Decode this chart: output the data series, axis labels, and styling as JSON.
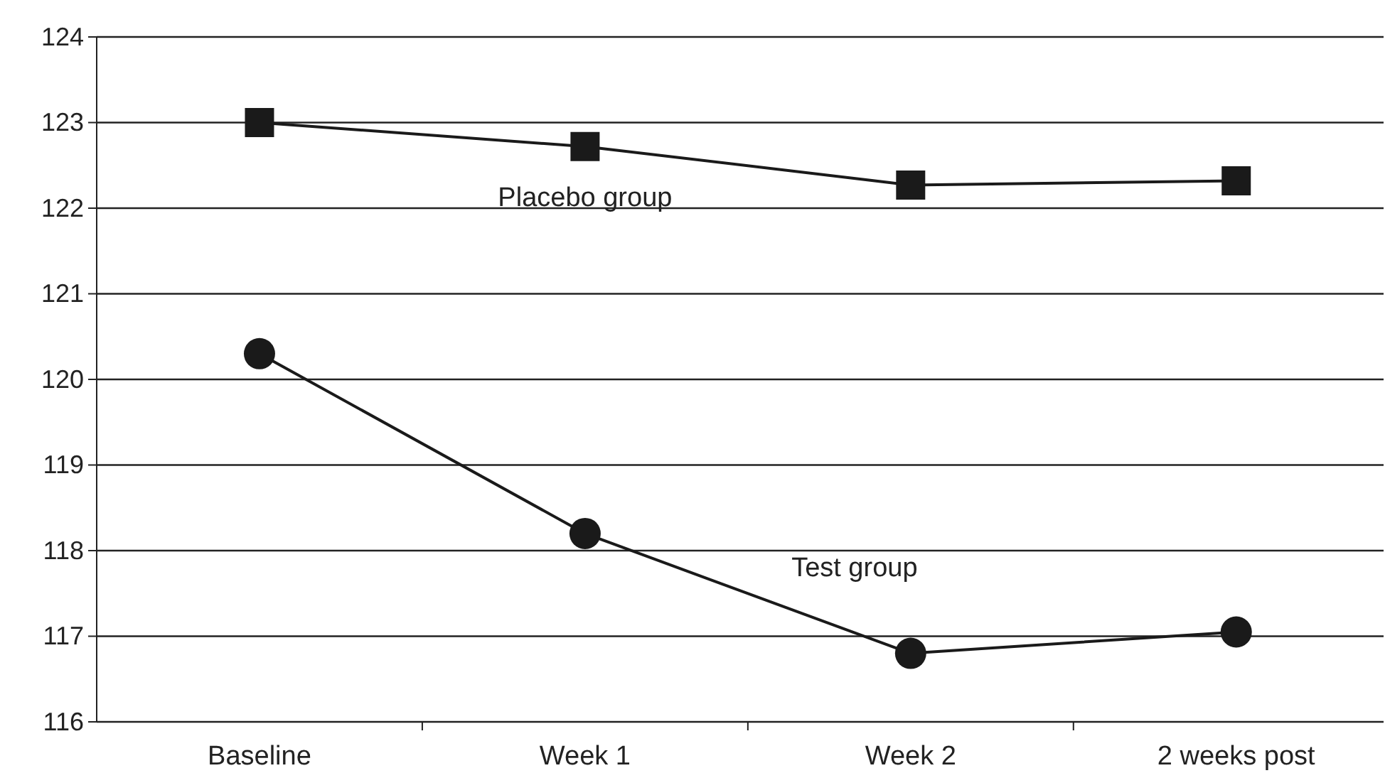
{
  "chart_data": {
    "type": "line",
    "categories": [
      "Baseline",
      "Week 1",
      "Week 2",
      "2 weeks post"
    ],
    "series": [
      {
        "name": "Placebo group",
        "color": "#1a1a1a",
        "marker": "square",
        "values": [
          123.0,
          122.72,
          122.27,
          122.32
        ]
      },
      {
        "name": "Test group",
        "color": "#1a1a1a",
        "marker": "circle",
        "values": [
          120.3,
          118.2,
          116.8,
          117.05
        ]
      }
    ],
    "ylim": [
      116,
      124
    ],
    "yticks": [
      116,
      117,
      118,
      119,
      120,
      121,
      122,
      123,
      124
    ],
    "grid": "y",
    "line_style": "solid"
  }
}
